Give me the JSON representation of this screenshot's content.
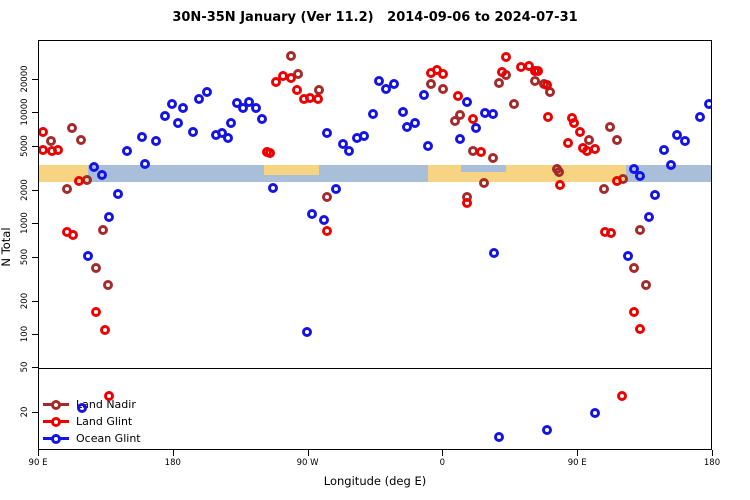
{
  "title": "30N-35N January (Ver 11.2)   2014-09-06 to 2024-07-31",
  "chart_data": {
    "type": "scatter",
    "title": "30N-35N January (Ver 11.2)   2014-09-06 to 2024-07-31",
    "x_label": "Longitude (deg E)",
    "y_label": "N Total",
    "y_scale": "log",
    "y_lim": [
      9,
      45000
    ],
    "x_range_deg": [
      90,
      540
    ],
    "x_ticks": [
      {
        "deg": 90,
        "label": "90 E"
      },
      {
        "deg": 180,
        "label": "180"
      },
      {
        "deg": 270,
        "label": "90 W"
      },
      {
        "deg": 360,
        "label": "0"
      },
      {
        "deg": 450,
        "label": "90 E"
      },
      {
        "deg": 540,
        "label": "180"
      }
    ],
    "y_ticks": [
      20000,
      10000,
      5000,
      2000,
      1000,
      500,
      200,
      100,
      50,
      20
    ],
    "separator_n": 50,
    "grid": false,
    "legend_position": "bottom-left",
    "band": {
      "n_top": 3400,
      "n_bottom": 2400,
      "ocean_color": "#A9BFD9",
      "land_color": "#F7D481",
      "segments": [
        {
          "kind": "ocean",
          "from": 90,
          "to": 540,
          "t": 0,
          "b": 1
        },
        {
          "kind": "land",
          "from": 90,
          "to": 123,
          "t": 0,
          "b": 1
        },
        {
          "kind": "land",
          "from": 240,
          "to": 277,
          "t": 0,
          "b": 0.55
        },
        {
          "kind": "land",
          "from": 350,
          "to": 482,
          "t": 0,
          "b": 1
        },
        {
          "kind": "ocean",
          "from": 372,
          "to": 402,
          "t": 0,
          "b": 0.4
        }
      ]
    },
    "series": [
      {
        "name": "Land Nadir",
        "color": "#A52A2A",
        "points": [
          [
            98,
            5630
          ],
          [
            112,
            7370
          ],
          [
            118,
            5750
          ],
          [
            258,
            32900
          ],
          [
            263,
            22600
          ],
          [
            277,
            16250
          ],
          [
            352,
            18400
          ],
          [
            360,
            16600
          ],
          [
            371,
            9660
          ],
          [
            368,
            8530
          ],
          [
            380,
            4570
          ],
          [
            402,
            22200
          ],
          [
            397,
            18800
          ],
          [
            421,
            19600
          ],
          [
            427,
            18400
          ],
          [
            431,
            15600
          ],
          [
            407,
            12100
          ],
          [
            393,
            3950
          ],
          [
            457,
            5750
          ],
          [
            471,
            7530
          ],
          [
            476,
            5750
          ],
          [
            436,
            3150
          ],
          [
            109,
            2075
          ],
          [
            122,
            2500
          ],
          [
            133,
            885
          ],
          [
            128,
            402
          ],
          [
            136,
            283
          ],
          [
            282,
            1760
          ],
          [
            387,
            2350
          ],
          [
            376,
            1760
          ],
          [
            437,
            2960
          ],
          [
            467,
            2075
          ],
          [
            480,
            2550
          ],
          [
            491,
            885
          ],
          [
            487,
            402
          ],
          [
            495,
            283
          ]
        ]
      },
      {
        "name": "Land Glint",
        "color": "#EE0000",
        "points": [
          [
            93,
            6790
          ],
          [
            93,
            4670
          ],
          [
            99,
            4570
          ],
          [
            103,
            4670
          ],
          [
            242,
            4480
          ],
          [
            244,
            4390
          ],
          [
            248,
            19200
          ],
          [
            253,
            21700
          ],
          [
            258,
            20800
          ],
          [
            262,
            16250
          ],
          [
            267,
            13500
          ],
          [
            271,
            13760
          ],
          [
            276,
            13500
          ],
          [
            352,
            23100
          ],
          [
            356,
            24600
          ],
          [
            360,
            22600
          ],
          [
            370,
            14350
          ],
          [
            380,
            8890
          ],
          [
            385,
            4480
          ],
          [
            402,
            32300
          ],
          [
            399,
            23600
          ],
          [
            412,
            26200
          ],
          [
            417,
            26700
          ],
          [
            421,
            24100
          ],
          [
            423,
            24100
          ],
          [
            429,
            18030
          ],
          [
            430,
            9270
          ],
          [
            446,
            9080
          ],
          [
            447,
            8180
          ],
          [
            451,
            6790
          ],
          [
            443,
            5400
          ],
          [
            453,
            4870
          ],
          [
            456,
            4570
          ],
          [
            461,
            4760
          ],
          [
            117,
            2450
          ],
          [
            109,
            850
          ],
          [
            113,
            798
          ],
          [
            128,
            161
          ],
          [
            134,
            111
          ],
          [
            282,
            867
          ],
          [
            376,
            1550
          ],
          [
            438,
            2250
          ],
          [
            476,
            2450
          ],
          [
            468,
            850
          ],
          [
            472,
            832
          ],
          [
            487,
            161
          ],
          [
            491,
            113
          ],
          [
            137,
            28
          ],
          [
            479,
            28
          ]
        ]
      },
      {
        "name": "Ocean Glint",
        "color": "#1414E6",
        "points": [
          [
            127,
            3300
          ],
          [
            149,
            4570
          ],
          [
            159,
            6120
          ],
          [
            161,
            3490
          ],
          [
            168,
            5620
          ],
          [
            174,
            9460
          ],
          [
            179,
            12100
          ],
          [
            183,
            8180
          ],
          [
            186,
            11200
          ],
          [
            193,
            6790
          ],
          [
            197,
            13500
          ],
          [
            202,
            15600
          ],
          [
            208,
            6380
          ],
          [
            212,
            6650
          ],
          [
            216,
            5990
          ],
          [
            218,
            8180
          ],
          [
            222,
            12400
          ],
          [
            226,
            11200
          ],
          [
            230,
            12650
          ],
          [
            235,
            11200
          ],
          [
            239,
            8890
          ],
          [
            282,
            6650
          ],
          [
            293,
            5290
          ],
          [
            297,
            4570
          ],
          [
            302,
            5990
          ],
          [
            307,
            6250
          ],
          [
            313,
            9860
          ],
          [
            317,
            19600
          ],
          [
            322,
            16600
          ],
          [
            327,
            18400
          ],
          [
            333,
            10280
          ],
          [
            336,
            7530
          ],
          [
            341,
            8180
          ],
          [
            347,
            14650
          ],
          [
            350,
            5070
          ],
          [
            376,
            12650
          ],
          [
            371,
            5870
          ],
          [
            382,
            7380
          ],
          [
            388,
            10070
          ],
          [
            393,
            9860
          ],
          [
            507,
            4670
          ],
          [
            512,
            3420
          ],
          [
            516,
            6340
          ],
          [
            521,
            5680
          ],
          [
            531,
            9270
          ],
          [
            537,
            12100
          ],
          [
            487,
            3150
          ],
          [
            132,
            2780
          ],
          [
            143,
            1870
          ],
          [
            137,
            1160
          ],
          [
            123,
            516
          ],
          [
            246,
            2120
          ],
          [
            288,
            2075
          ],
          [
            272,
            1240
          ],
          [
            280,
            1090
          ],
          [
            269,
            106
          ],
          [
            491,
            2720
          ],
          [
            501,
            1830
          ],
          [
            497,
            1160
          ],
          [
            483,
            516
          ],
          [
            394,
            548
          ],
          [
            119,
            22
          ],
          [
            397,
            12
          ],
          [
            429,
            14
          ],
          [
            461,
            20
          ]
        ]
      }
    ]
  }
}
